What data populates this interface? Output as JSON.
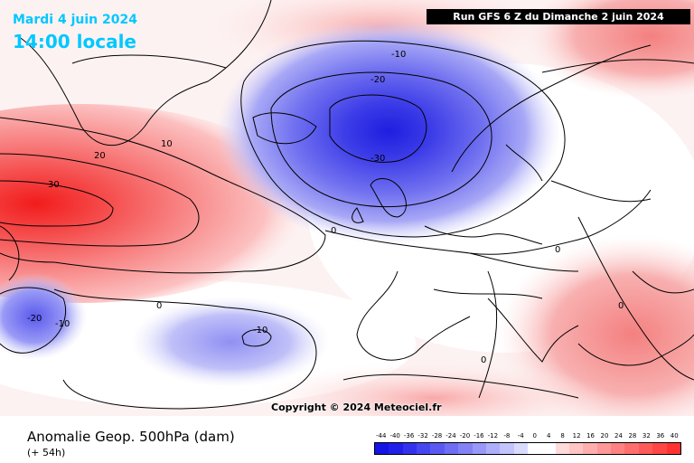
{
  "header": {
    "date": "Mardi 4 juin 2024",
    "time": "14:00 locale",
    "run": "Run GFS 6 Z du Dimanche 2 juin 2024"
  },
  "copyright": "Copyright © 2024 Meteociel.fr",
  "footer": {
    "title": "Anomalie Geop. 500hPa (dam)",
    "subtitle": "(+ 54h)"
  },
  "contour_labels": [
    "-10",
    "-20",
    "-30",
    "10",
    "20",
    "30",
    "0",
    "-20",
    "-10",
    "0",
    "-10",
    "0",
    "0",
    "0",
    "10"
  ],
  "colorbar": {
    "ticks": [
      "-44",
      "-40",
      "-36",
      "-32",
      "-28",
      "-24",
      "-20",
      "-16",
      "-12",
      "-8",
      "-4",
      "0",
      "4",
      "8",
      "12",
      "16",
      "20",
      "24",
      "28",
      "32",
      "36",
      "40"
    ],
    "colors": [
      "#1414e6",
      "#2020ea",
      "#3232ee",
      "#4646f0",
      "#5a5af2",
      "#6e6ef4",
      "#8282f6",
      "#9898f8",
      "#aeaefa",
      "#c4c4fc",
      "#dadafd",
      "#ffffff",
      "#ffffff",
      "#ffdada",
      "#ffc4c4",
      "#ffaeae",
      "#ff9898",
      "#ff8282",
      "#ff6e6e",
      "#ff5a5a",
      "#ff4646",
      "#ff3232"
    ]
  },
  "colors": {
    "title": "#00c8ff",
    "negative": "#4040e0",
    "positive": "#f04040"
  }
}
